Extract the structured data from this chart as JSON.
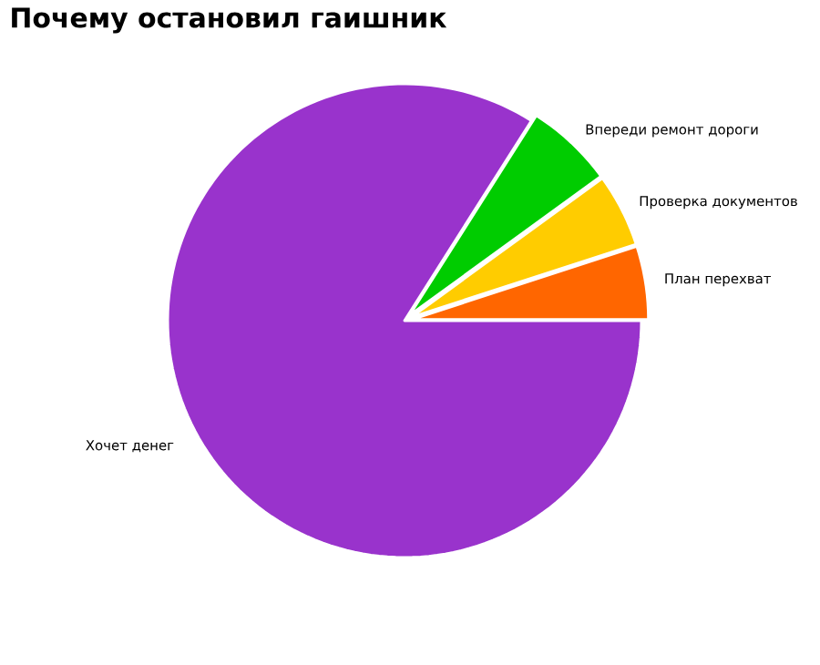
{
  "chart_data": {
    "type": "pie",
    "title": "Почему остановил гаишник",
    "categories": [
      "План перехват",
      "Проверка документов",
      "Впереди ремонт дороги",
      "Хочет денег"
    ],
    "values": [
      5,
      5,
      6,
      84
    ],
    "colors": [
      "#ff6600",
      "#ffcc00",
      "#00cc00",
      "#9933cc"
    ]
  }
}
